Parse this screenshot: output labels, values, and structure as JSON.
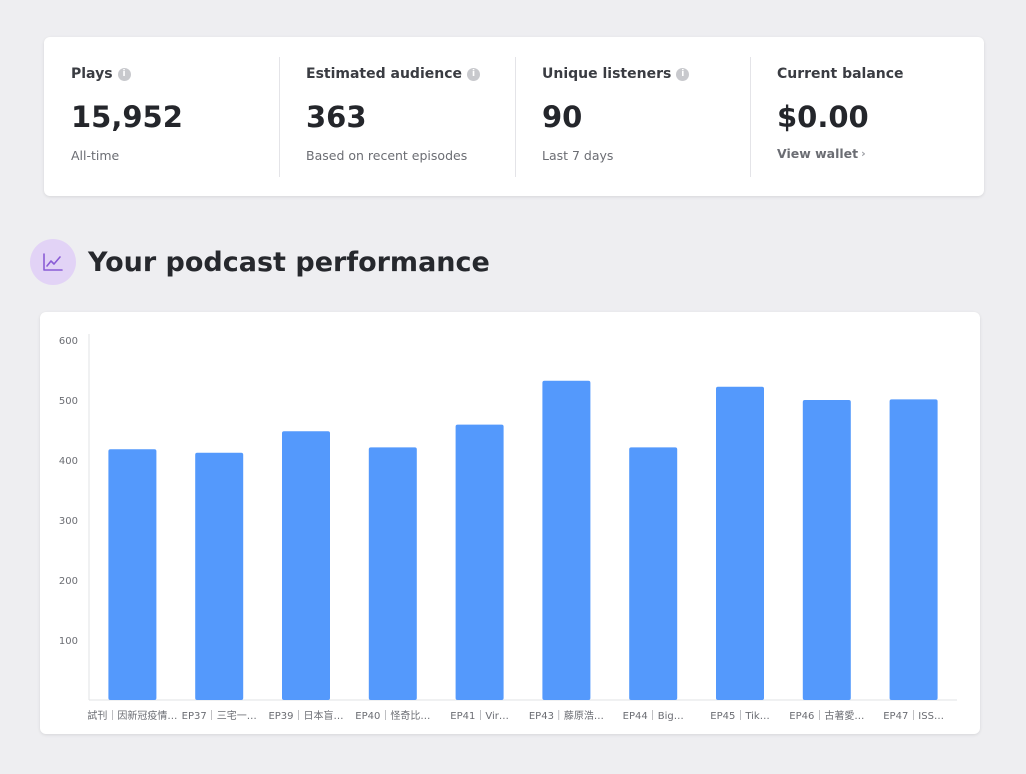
{
  "stats": [
    {
      "label": "Plays",
      "info_icon": "info-icon",
      "value": "15,952",
      "sub": "All-time"
    },
    {
      "label": "Estimated audience",
      "info_icon": "info-icon",
      "value": "363",
      "sub": "Based on recent episodes"
    },
    {
      "label": "Unique listeners",
      "info_icon": "info-icon",
      "value": "90",
      "sub": "Last 7 days"
    },
    {
      "label": "Current balance",
      "value": "$0.00",
      "link": "View wallet",
      "link_icon": "chevron-right-icon"
    }
  ],
  "performance": {
    "icon": "trend-chart-icon",
    "title": "Your podcast performance"
  },
  "colors": {
    "bar": "#5499fc",
    "accent_bg": "#e2d3f6",
    "accent_icon": "#8a5cd6"
  },
  "chart_data": {
    "type": "bar",
    "categories": [
      "試刊｜因新冠疫情…",
      "EP37｜三宅一…",
      "EP39｜日本盲…",
      "EP40｜怪奇比…",
      "EP41｜Vir…",
      "EP43｜藤原浩…",
      "EP44｜Big…",
      "EP45｜Tik…",
      "EP46｜古著愛…",
      "EP47｜ISS…"
    ],
    "values": [
      418,
      412,
      448,
      421,
      459,
      532,
      421,
      522,
      500,
      501
    ],
    "ylim": [
      0,
      600
    ],
    "yticks": [
      100,
      200,
      300,
      400,
      500,
      600
    ],
    "grid": false
  }
}
